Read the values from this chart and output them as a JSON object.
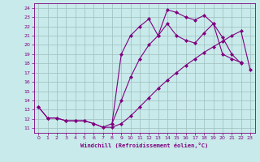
{
  "xlabel": "Windchill (Refroidissement éolien,°C)",
  "bg_color": "#c8eaea",
  "line_color": "#800080",
  "grid_color": "#9fbebe",
  "xlim": [
    -0.5,
    23.5
  ],
  "ylim": [
    10.5,
    24.5
  ],
  "xticks": [
    0,
    1,
    2,
    3,
    4,
    5,
    6,
    7,
    8,
    9,
    10,
    11,
    12,
    13,
    14,
    15,
    16,
    17,
    18,
    19,
    20,
    21,
    22,
    23
  ],
  "yticks": [
    11,
    12,
    13,
    14,
    15,
    16,
    17,
    18,
    19,
    20,
    21,
    22,
    23,
    24
  ],
  "line1_x": [
    0,
    1,
    2,
    3,
    4,
    5,
    6,
    7,
    8,
    9,
    10,
    11,
    12,
    13,
    14,
    15,
    16,
    17,
    18,
    19,
    20,
    21,
    22,
    23
  ],
  "line1_y": [
    13.3,
    12.1,
    12.1,
    11.8,
    11.8,
    11.8,
    11.5,
    11.1,
    11.1,
    11.5,
    12.3,
    13.3,
    14.3,
    15.3,
    16.2,
    17.0,
    17.8,
    18.5,
    19.2,
    19.8,
    20.4,
    21.0,
    21.5,
    17.3
  ],
  "line2_x": [
    0,
    1,
    2,
    3,
    4,
    5,
    6,
    7,
    8,
    9,
    10,
    11,
    12,
    13,
    14,
    15,
    16,
    17,
    18,
    19,
    20,
    21,
    22
  ],
  "line2_y": [
    13.3,
    12.1,
    12.1,
    11.8,
    11.8,
    11.8,
    11.5,
    11.1,
    11.5,
    19.0,
    21.0,
    22.0,
    22.8,
    21.0,
    23.8,
    23.5,
    23.0,
    22.7,
    23.2,
    22.3,
    19.0,
    18.5,
    18.1
  ],
  "line3_x": [
    8,
    9,
    10,
    11,
    12,
    13,
    14,
    15,
    16,
    17,
    18,
    19,
    20,
    21,
    22
  ],
  "line3_y": [
    11.5,
    14.0,
    16.5,
    18.5,
    20.0,
    21.0,
    22.3,
    21.0,
    20.5,
    20.2,
    21.3,
    22.3,
    20.8,
    19.0,
    18.0
  ],
  "marker": "D",
  "markersize": 2,
  "linewidth": 0.8
}
